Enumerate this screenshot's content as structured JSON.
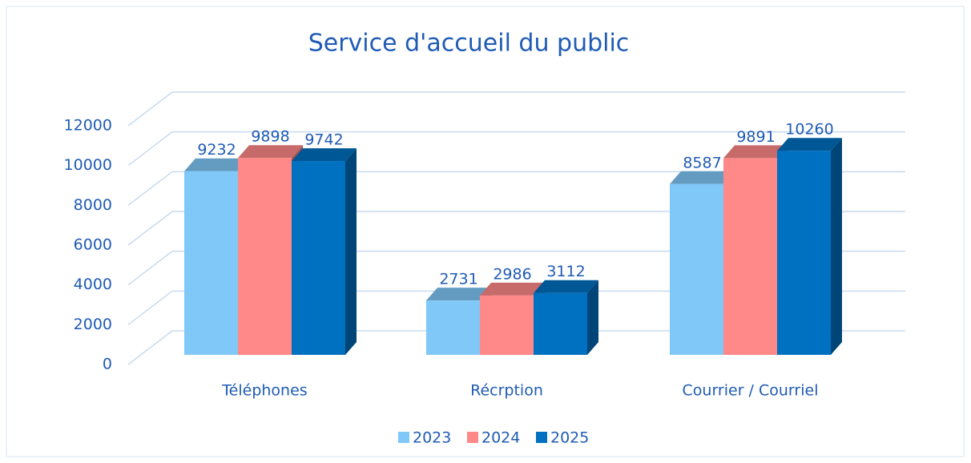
{
  "chart_data": {
    "type": "bar3d",
    "title": "Service d'accueil du public",
    "categories": [
      "Téléphones",
      "Récrption",
      "Courrier / Courriel"
    ],
    "series": [
      {
        "name": "2023",
        "color": "#80c8f8",
        "values": [
          9232,
          2731,
          8587
        ]
      },
      {
        "name": "2024",
        "color": "#ff8888",
        "values": [
          9898,
          2986,
          9891
        ]
      },
      {
        "name": "2025",
        "color": "#0070c0",
        "values": [
          9742,
          3112,
          10260
        ]
      }
    ],
    "ylim": [
      0,
      12000
    ],
    "yticks": [
      0,
      2000,
      4000,
      6000,
      8000,
      10000,
      12000
    ],
    "grid": true,
    "legend": "bottom"
  }
}
